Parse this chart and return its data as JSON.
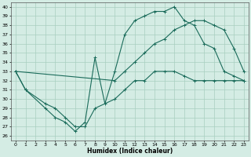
{
  "xlabel": "Humidex (Indice chaleur)",
  "xlim": [
    -0.5,
    23.5
  ],
  "ylim": [
    25.5,
    40.5
  ],
  "xticks": [
    0,
    1,
    2,
    3,
    4,
    5,
    6,
    7,
    8,
    9,
    10,
    11,
    12,
    13,
    14,
    15,
    16,
    17,
    18,
    19,
    20,
    21,
    22,
    23
  ],
  "yticks": [
    26,
    27,
    28,
    29,
    30,
    31,
    32,
    33,
    34,
    35,
    36,
    37,
    38,
    39,
    40
  ],
  "bg_color": "#d4ece4",
  "line_color": "#1a6b5a",
  "grid_color": "#a8cfc0",
  "line1_x": [
    0,
    1,
    3,
    4,
    5,
    6,
    7,
    8,
    10,
    11,
    12,
    13,
    14,
    15,
    16,
    17,
    18,
    19,
    20,
    21,
    22,
    23
  ],
  "line1_y": [
    33,
    31,
    29.5,
    29,
    28,
    27,
    27,
    29,
    30,
    31,
    32,
    32,
    33,
    33,
    33,
    32.5,
    32,
    32,
    32,
    32,
    32,
    32
  ],
  "line2_x": [
    0,
    1,
    3,
    4,
    5,
    6,
    7,
    8,
    9,
    10,
    11,
    12,
    13,
    14,
    15,
    16,
    17,
    18,
    19,
    20,
    21,
    22,
    23
  ],
  "line2_y": [
    33,
    31,
    29,
    28,
    27.5,
    26.5,
    27.5,
    34.5,
    29.5,
    33,
    37,
    38.5,
    39,
    39.5,
    39.5,
    40,
    38.5,
    38,
    36,
    35.5,
    33,
    32.5,
    32
  ],
  "line3_x": [
    0,
    10,
    11,
    12,
    13,
    14,
    15,
    16,
    17,
    18,
    19,
    20,
    21,
    22,
    23
  ],
  "line3_y": [
    33,
    32,
    33,
    34,
    35,
    36,
    36.5,
    37.5,
    38,
    38.5,
    38.5,
    38,
    37.5,
    35.5,
    33
  ]
}
